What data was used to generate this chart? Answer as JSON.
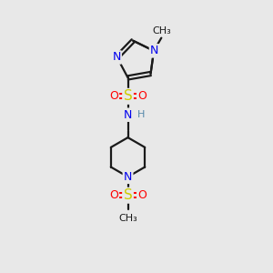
{
  "background_color": "#e8e8e8",
  "figsize": [
    3.0,
    3.0
  ],
  "dpi": 100,
  "colors": {
    "bond": "#1a1a1a",
    "N": "#0000ee",
    "S": "#cccc00",
    "O": "#ff0000",
    "C": "#1a1a1a",
    "H": "#5588aa"
  },
  "bond_lw": 1.6,
  "font_size_atom": 9,
  "font_size_small": 8
}
